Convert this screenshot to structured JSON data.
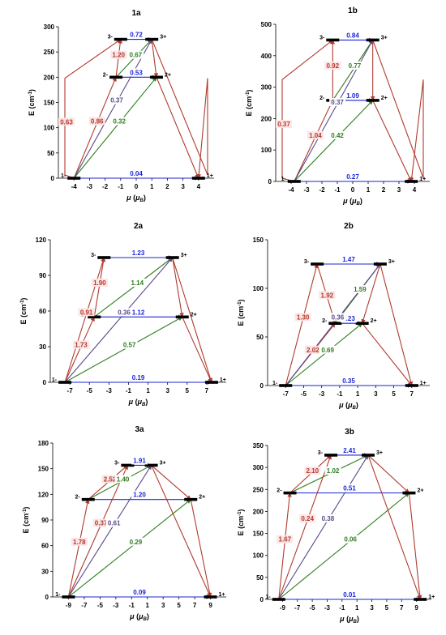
{
  "colors": {
    "red": "#b03a2e",
    "blue": "#1a24d6",
    "green": "#2e7d1e",
    "purple": "#5a4a8a",
    "label_bg": "#fde4e4",
    "level": "#000000",
    "axis": "#000000"
  },
  "common": {
    "xlabel": "μ (μB)",
    "ylabel": "E (cm-1)"
  },
  "chart_data": [
    {
      "id": "1a",
      "type": "scatter",
      "title": "1a",
      "xlim": [
        -5,
        5
      ],
      "xticks": [
        -4,
        -3,
        -2,
        -1,
        0,
        1,
        2,
        3,
        4
      ],
      "ylim": [
        0,
        300
      ],
      "yticks": [
        0,
        50,
        100,
        150,
        200,
        250,
        300
      ],
      "levels": [
        {
          "name": "1-",
          "x": -4,
          "y": 0
        },
        {
          "name": "1+",
          "x": 4,
          "y": 0
        },
        {
          "name": "2-",
          "x": -1.3,
          "y": 200
        },
        {
          "name": "2+",
          "x": 1.3,
          "y": 200
        },
        {
          "name": "3-",
          "x": -1,
          "y": 275
        },
        {
          "name": "3+",
          "x": 1,
          "y": 275
        }
      ],
      "transitions": [
        {
          "from": "1-",
          "to": "1+",
          "value": "0.04",
          "color": "blue"
        },
        {
          "from": "2-",
          "to": "2+",
          "value": "0.53",
          "color": "blue"
        },
        {
          "from": "3-",
          "to": "3+",
          "value": "0.72",
          "color": "blue"
        },
        {
          "from": "1-",
          "to": "2-",
          "value": "0.86",
          "color": "red"
        },
        {
          "from": "2-",
          "to": "3-",
          "value": "1.20",
          "color": "red"
        },
        {
          "from": "1-",
          "to": "3-",
          "value": "0.63",
          "color": "red",
          "bow": -4.8
        },
        {
          "from": "1-",
          "to": "2+",
          "value": "0.32",
          "color": "green"
        },
        {
          "from": "2-",
          "to": "3+",
          "value": "0.67",
          "color": "green"
        },
        {
          "from": "1-",
          "to": "3+",
          "value": "0.37",
          "color": "purple"
        },
        {
          "from": "3+",
          "to": "2+",
          "value": "",
          "color": "red"
        },
        {
          "from": "2+",
          "to": "1+",
          "value": "",
          "color": "red"
        },
        {
          "from": "3+",
          "to": "1+",
          "value": "",
          "color": "red",
          "bow": 4.8
        }
      ]
    },
    {
      "id": "1b",
      "type": "scatter",
      "title": "1b",
      "xlim": [
        -5,
        5
      ],
      "xticks": [
        -4,
        -3,
        -2,
        -1,
        0,
        1,
        2,
        3,
        4
      ],
      "ylim": [
        0,
        500
      ],
      "yticks": [
        0,
        100,
        200,
        300,
        400,
        500
      ],
      "levels": [
        {
          "name": "1-",
          "x": -3.8,
          "y": 0
        },
        {
          "name": "1+",
          "x": 3.8,
          "y": 0
        },
        {
          "name": "2-",
          "x": -1.3,
          "y": 258
        },
        {
          "name": "2+",
          "x": 1.3,
          "y": 258
        },
        {
          "name": "3-",
          "x": -1.3,
          "y": 450
        },
        {
          "name": "3+",
          "x": 1.3,
          "y": 450
        }
      ],
      "transitions": [
        {
          "from": "1-",
          "to": "1+",
          "value": "0.27",
          "color": "blue"
        },
        {
          "from": "2-",
          "to": "2+",
          "value": "1.09",
          "color": "blue"
        },
        {
          "from": "3-",
          "to": "3+",
          "value": "0.84",
          "color": "blue"
        },
        {
          "from": "1-",
          "to": "2-",
          "value": "1.04",
          "color": "red"
        },
        {
          "from": "2-",
          "to": "3-",
          "value": "0.92",
          "color": "red"
        },
        {
          "from": "1-",
          "to": "3-",
          "value": "0.37",
          "color": "red",
          "bow": -4.6
        },
        {
          "from": "1-",
          "to": "2+",
          "value": "0.42",
          "color": "green"
        },
        {
          "from": "2-",
          "to": "3+",
          "value": "0.77",
          "color": "green"
        },
        {
          "from": "1-",
          "to": "3+",
          "value": "0.37",
          "color": "purple"
        },
        {
          "from": "3+",
          "to": "2+",
          "value": "",
          "color": "red"
        },
        {
          "from": "2+",
          "to": "1+",
          "value": "",
          "color": "red"
        },
        {
          "from": "3+",
          "to": "1+",
          "value": "",
          "color": "red",
          "bow": 4.6
        }
      ]
    },
    {
      "id": "2a",
      "type": "scatter",
      "title": "2a",
      "xlim": [
        -9,
        9
      ],
      "xticks": [
        -7,
        -5,
        -3,
        -1,
        1,
        3,
        5,
        7
      ],
      "ylim": [
        0,
        120
      ],
      "yticks": [
        0,
        30,
        60,
        90,
        120
      ],
      "levels": [
        {
          "name": "1-",
          "x": -7.5,
          "y": 0
        },
        {
          "name": "1+",
          "x": 7.5,
          "y": 0
        },
        {
          "name": "2-",
          "x": -4.5,
          "y": 55
        },
        {
          "name": "2+",
          "x": 4.5,
          "y": 55
        },
        {
          "name": "3-",
          "x": -3.5,
          "y": 105
        },
        {
          "name": "3+",
          "x": 3.5,
          "y": 105
        }
      ],
      "transitions": [
        {
          "from": "1-",
          "to": "1+",
          "value": "0.19",
          "color": "blue"
        },
        {
          "from": "2-",
          "to": "2+",
          "value": "1.12",
          "color": "blue"
        },
        {
          "from": "3-",
          "to": "3+",
          "value": "1.23",
          "color": "blue"
        },
        {
          "from": "1-",
          "to": "2-",
          "value": "1.73",
          "color": "red"
        },
        {
          "from": "2-",
          "to": "3-",
          "value": "1.90",
          "color": "red"
        },
        {
          "from": "1-",
          "to": "3-",
          "value": "0.91",
          "color": "red"
        },
        {
          "from": "1-",
          "to": "2+",
          "value": "0.57",
          "color": "green"
        },
        {
          "from": "2-",
          "to": "3+",
          "value": "1.14",
          "color": "green"
        },
        {
          "from": "1-",
          "to": "3+",
          "value": "0.36",
          "color": "purple"
        },
        {
          "from": "3+",
          "to": "2+",
          "value": "",
          "color": "red"
        },
        {
          "from": "2+",
          "to": "1+",
          "value": "",
          "color": "red"
        },
        {
          "from": "3+",
          "to": "1+",
          "value": "",
          "color": "red"
        }
      ]
    },
    {
      "id": "2b",
      "type": "scatter",
      "title": "2b",
      "xlim": [
        -9,
        9
      ],
      "xticks": [
        -7,
        -5,
        -3,
        -1,
        1,
        3,
        5,
        7
      ],
      "ylim": [
        0,
        150
      ],
      "yticks": [
        0,
        50,
        100,
        150
      ],
      "levels": [
        {
          "name": "1-",
          "x": -7,
          "y": 0
        },
        {
          "name": "1+",
          "x": 7,
          "y": 0
        },
        {
          "name": "2-",
          "x": -1.5,
          "y": 64
        },
        {
          "name": "2+",
          "x": 1.5,
          "y": 64
        },
        {
          "name": "3-",
          "x": -3.5,
          "y": 125
        },
        {
          "name": "3+",
          "x": 3.5,
          "y": 125
        }
      ],
      "transitions": [
        {
          "from": "1-",
          "to": "1+",
          "value": "0.35",
          "color": "blue"
        },
        {
          "from": "2-",
          "to": "2+",
          "value": "2.23",
          "color": "blue"
        },
        {
          "from": "3-",
          "to": "3+",
          "value": "1.47",
          "color": "blue"
        },
        {
          "from": "1-",
          "to": "2-",
          "value": "2.02",
          "color": "red"
        },
        {
          "from": "3-",
          "to": "2-",
          "value": "1.92",
          "color": "red"
        },
        {
          "from": "1-",
          "to": "3-",
          "value": "1.30",
          "color": "red"
        },
        {
          "from": "1-",
          "to": "2+",
          "value": "0.69",
          "color": "green"
        },
        {
          "from": "2-",
          "to": "3+",
          "value": "1.59",
          "color": "green"
        },
        {
          "from": "1-",
          "to": "3+",
          "value": "0.36",
          "color": "purple"
        },
        {
          "from": "3+",
          "to": "2+",
          "value": "",
          "color": "red"
        },
        {
          "from": "2+",
          "to": "1+",
          "value": "",
          "color": "red"
        },
        {
          "from": "3+",
          "to": "1+",
          "value": "",
          "color": "red"
        }
      ]
    },
    {
      "id": "3a",
      "type": "scatter",
      "title": "3a",
      "xlim": [
        -11,
        11
      ],
      "xticks": [
        -9,
        -7,
        -5,
        -3,
        -1,
        1,
        3,
        5,
        7,
        9
      ],
      "ylim": [
        0,
        180
      ],
      "yticks": [
        0,
        30,
        60,
        90,
        120,
        150,
        180
      ],
      "levels": [
        {
          "name": "1-",
          "x": -9,
          "y": 0
        },
        {
          "name": "1+",
          "x": 9,
          "y": 0
        },
        {
          "name": "2-",
          "x": -6.5,
          "y": 114
        },
        {
          "name": "2+",
          "x": 6.5,
          "y": 114
        },
        {
          "name": "3-",
          "x": -1.5,
          "y": 154
        },
        {
          "name": "3+",
          "x": 1.5,
          "y": 154
        }
      ],
      "transitions": [
        {
          "from": "1-",
          "to": "1+",
          "value": "0.09",
          "color": "blue"
        },
        {
          "from": "2-",
          "to": "2+",
          "value": "1.20",
          "color": "blue"
        },
        {
          "from": "3-",
          "to": "3+",
          "value": "1.91",
          "color": "blue"
        },
        {
          "from": "1-",
          "to": "2-",
          "value": "1.78",
          "color": "red"
        },
        {
          "from": "2-",
          "to": "3-",
          "value": "2.52",
          "color": "red"
        },
        {
          "from": "1-",
          "to": "3-",
          "value": "0.37",
          "color": "red"
        },
        {
          "from": "1-",
          "to": "2+",
          "value": "0.29",
          "color": "green"
        },
        {
          "from": "2-",
          "to": "3+",
          "value": "1.40",
          "color": "green"
        },
        {
          "from": "1-",
          "to": "3+",
          "value": "0.61",
          "color": "purple"
        },
        {
          "from": "3+",
          "to": "2+",
          "value": "",
          "color": "red"
        },
        {
          "from": "2+",
          "to": "1+",
          "value": "",
          "color": "red"
        },
        {
          "from": "3+",
          "to": "1+",
          "value": "",
          "color": "red"
        }
      ]
    },
    {
      "id": "3b",
      "type": "scatter",
      "title": "3b",
      "xlim": [
        -11,
        11
      ],
      "xticks": [
        -9,
        -7,
        -5,
        -3,
        -1,
        1,
        3,
        5,
        7,
        9
      ],
      "ylim": [
        0,
        350
      ],
      "yticks": [
        0,
        50,
        100,
        150,
        200,
        250,
        300,
        350
      ],
      "levels": [
        {
          "name": "1-",
          "x": -9.5,
          "y": 0
        },
        {
          "name": "1+",
          "x": 9.5,
          "y": 0
        },
        {
          "name": "2-",
          "x": -8,
          "y": 242
        },
        {
          "name": "2+",
          "x": 8,
          "y": 242
        },
        {
          "name": "3-",
          "x": -2.5,
          "y": 328
        },
        {
          "name": "3+",
          "x": 2.5,
          "y": 328
        }
      ],
      "transitions": [
        {
          "from": "1-",
          "to": "1+",
          "value": "0.01",
          "color": "blue"
        },
        {
          "from": "2-",
          "to": "2+",
          "value": "0.51",
          "color": "blue"
        },
        {
          "from": "3-",
          "to": "3+",
          "value": "2.41",
          "color": "blue"
        },
        {
          "from": "1-",
          "to": "2-",
          "value": "1.67",
          "color": "red"
        },
        {
          "from": "2-",
          "to": "3-",
          "value": "2.10",
          "color": "red"
        },
        {
          "from": "1-",
          "to": "3-",
          "value": "0.24",
          "color": "red"
        },
        {
          "from": "1-",
          "to": "2+",
          "value": "0.06",
          "color": "green"
        },
        {
          "from": "2-",
          "to": "3+",
          "value": "1.02",
          "color": "green"
        },
        {
          "from": "1-",
          "to": "3+",
          "value": "0.38",
          "color": "purple"
        },
        {
          "from": "3+",
          "to": "2+",
          "value": "",
          "color": "red"
        },
        {
          "from": "2+",
          "to": "1+",
          "value": "",
          "color": "red"
        },
        {
          "from": "3+",
          "to": "1+",
          "value": "",
          "color": "red"
        }
      ]
    }
  ]
}
